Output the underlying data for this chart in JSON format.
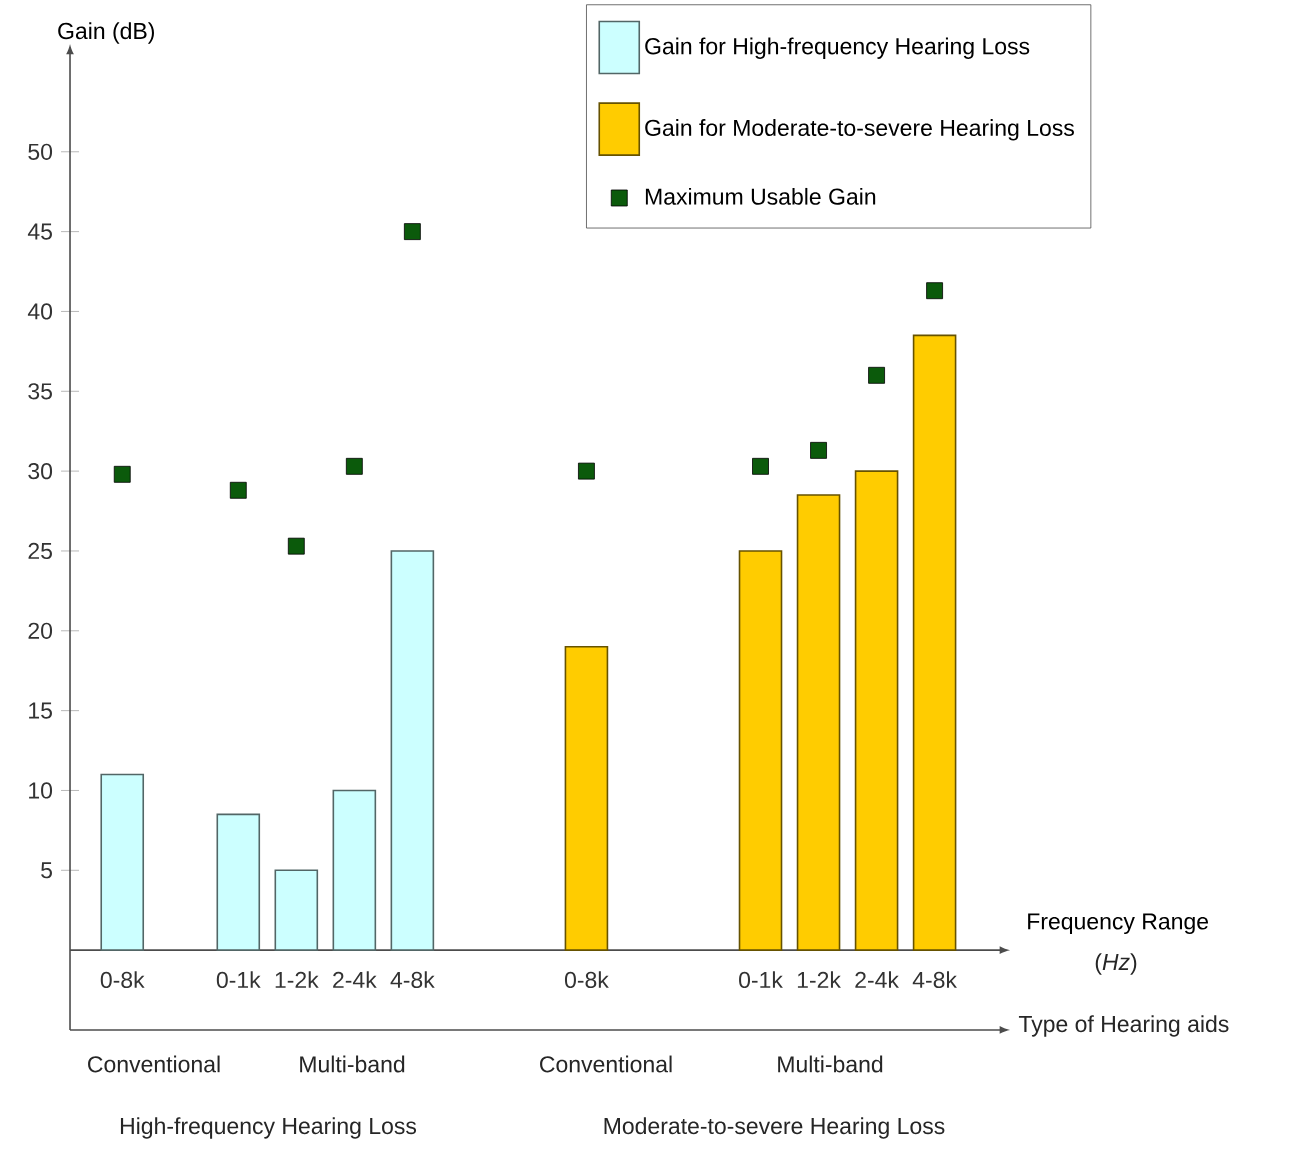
{
  "chart_data": {
    "type": "bar",
    "ylabel": "Gain (dB)",
    "xlabel": "Frequency Range",
    "categories": [
      "0-8k",
      null,
      "0-1k",
      "1-2k",
      "2-4k",
      "4-8k",
      null,
      null,
      "0-8k",
      null,
      null,
      "0-1k",
      "1-2k",
      "2-4k",
      "4-8k"
    ],
    "ylim": [
      -5,
      56
    ],
    "yticks": [
      5,
      10,
      15,
      20,
      25,
      30,
      35,
      40,
      45,
      50
    ],
    "legend": "top right",
    "marker": "square",
    "grid": false,
    "series": [
      {
        "name": "Gain for High-frequency Hearing Loss",
        "color": "#ccffff",
        "values": [
          11,
          null,
          8.5,
          5,
          10,
          25,
          null,
          null,
          null,
          null,
          null,
          null,
          null,
          null,
          null
        ]
      },
      {
        "name": "Gain for Moderate-to-severe Hearing Loss",
        "color": "#ffcc00",
        "values": [
          null,
          null,
          null,
          null,
          null,
          null,
          null,
          null,
          19,
          null,
          null,
          25,
          28.5,
          30,
          38.5
        ]
      },
      {
        "name": "Maximum Usable Gain",
        "type": "scatter",
        "color": "#0b5a0b",
        "values": [
          29.8,
          null,
          28.8,
          25.3,
          30.3,
          45,
          null,
          null,
          30,
          null,
          null,
          30.3,
          31.3,
          36,
          41.3
        ]
      }
    ],
    "annotations": [
      "(*Hz*)",
      "Type of Hearing aids",
      "Conventional",
      "Multi-band",
      "Conventional",
      "Multi-band",
      "High-frequency Hearing Loss",
      "Moderate-to-severe Hearing Loss"
    ]
  }
}
